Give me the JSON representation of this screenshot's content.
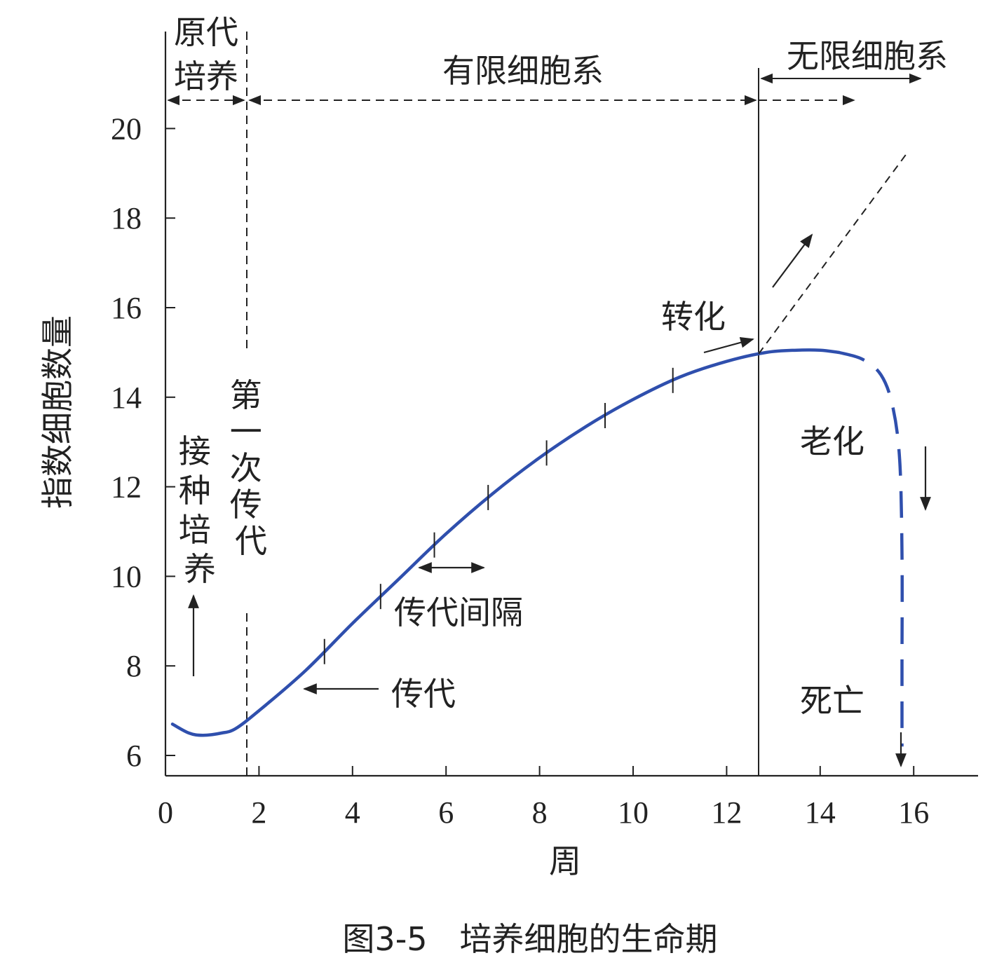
{
  "chart_data": {
    "type": "line",
    "caption": "图3-5　培养细胞的生命期",
    "xlabel": "周",
    "ylabel": "指数细胞数量",
    "xlim": [
      0,
      17.5
    ],
    "ylim": [
      5.5,
      21.5
    ],
    "xticks": [
      0,
      2,
      4,
      6,
      8,
      10,
      12,
      14,
      16
    ],
    "xtick_labels": [
      "0",
      "2",
      "4",
      "6",
      "8",
      "10",
      "12",
      "14",
      "16"
    ],
    "yticks": [
      6,
      8,
      10,
      12,
      14,
      16,
      18,
      20
    ],
    "ytick_labels": [
      "6",
      "8",
      "10",
      "12",
      "14",
      "16",
      "18",
      "20"
    ],
    "grid": false,
    "series": [
      {
        "style": "solid",
        "color": "#2f4fad",
        "points": [
          [
            0.15,
            6.7
          ],
          [
            0.5,
            6.5
          ],
          [
            0.8,
            6.45
          ],
          [
            1.2,
            6.5
          ],
          [
            1.5,
            6.6
          ],
          [
            2.0,
            7.0
          ],
          [
            3.0,
            7.9
          ],
          [
            4.0,
            8.95
          ],
          [
            5.0,
            9.95
          ],
          [
            6.0,
            10.95
          ],
          [
            7.0,
            11.85
          ],
          [
            8.0,
            12.65
          ],
          [
            9.0,
            13.35
          ],
          [
            10.0,
            13.95
          ],
          [
            11.0,
            14.45
          ],
          [
            12.0,
            14.8
          ],
          [
            12.85,
            15.0
          ],
          [
            13.5,
            15.05
          ],
          [
            14.0,
            15.05
          ],
          [
            14.4,
            15.0
          ]
        ]
      },
      {
        "style": "dashed",
        "color": "#2f4fad",
        "points": [
          [
            14.4,
            15.0
          ],
          [
            14.9,
            14.85
          ],
          [
            15.3,
            14.5
          ],
          [
            15.55,
            13.8
          ],
          [
            15.7,
            12.6
          ],
          [
            15.75,
            10.5
          ],
          [
            15.75,
            8.0
          ],
          [
            15.75,
            6.2
          ]
        ]
      }
    ],
    "passage_ticks_x": [
      3.4,
      4.6,
      5.75,
      6.9,
      8.15,
      9.4,
      10.85
    ],
    "region_labels": [
      "原代",
      "培养",
      "有限细胞系",
      "无限细胞系"
    ],
    "annotations": {
      "inoculate": "接种培养",
      "first_passage": "第一次传代",
      "passage_interval": "传代间隔",
      "passage": "传代",
      "transform": "转化",
      "senescence": "老化",
      "death": "死亡"
    },
    "line_color": "#2f4fad",
    "axis_color": "#222222"
  }
}
